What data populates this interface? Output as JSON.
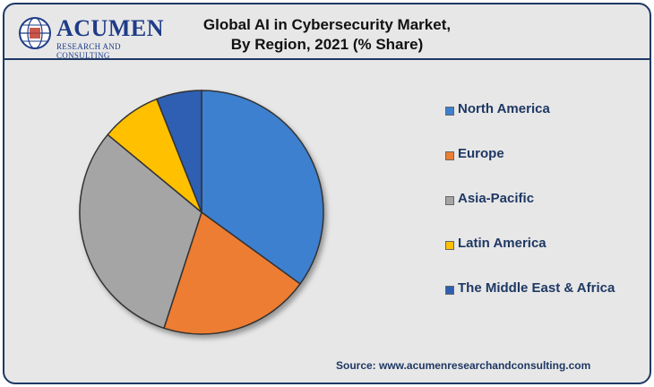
{
  "logo": {
    "name": "ACUMEN",
    "subtitle": "RESEARCH AND CONSULTING"
  },
  "title": {
    "line1": "Global AI in Cybersecurity Market,",
    "line2": "By Region, 2021 (% Share)"
  },
  "source": "Source: www.acumenresearchandconsulting.com",
  "colors": {
    "background": "#e7e7e7",
    "frame_border": "#1f3864",
    "text_accent": "#1f3864"
  },
  "chart_data": {
    "type": "pie",
    "title": "Global AI in Cybersecurity Market, By Region, 2021 (% Share)",
    "legend_position": "right",
    "categories": [
      "North America",
      "Europe",
      "Asia-Pacific",
      "Latin America",
      "The Middle East & Africa"
    ],
    "values": [
      35,
      20,
      31,
      8,
      6
    ],
    "colors": [
      "#3c80cf",
      "#ed7d31",
      "#a5a5a5",
      "#ffc000",
      "#2e5fb3"
    ]
  }
}
